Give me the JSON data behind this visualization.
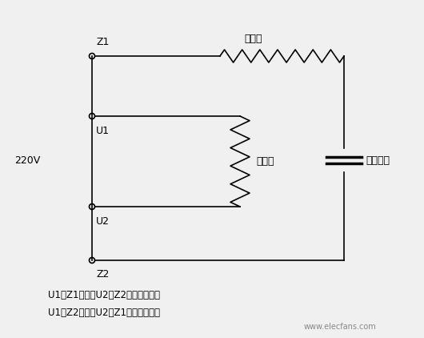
{
  "background_color": "#f0f0f0",
  "line_color": "#000000",
  "text_color": "#000000",
  "title": "",
  "label_220V": "220V",
  "label_Z1": "Z1",
  "label_Z2": "Z2",
  "label_U1": "U1",
  "label_U2": "U2",
  "label_aux_winding": "副绕组",
  "label_main_winding": "主绕组",
  "label_capacitor": "起动电容",
  "text_line1": "U1、Z1短接；U2、Z2短接为正转。",
  "text_line2": "U1、Z2短接；U2、Z1短接为反转。",
  "watermark": "www.elecfans.com",
  "figsize": [
    5.3,
    4.22
  ],
  "dpi": 100
}
